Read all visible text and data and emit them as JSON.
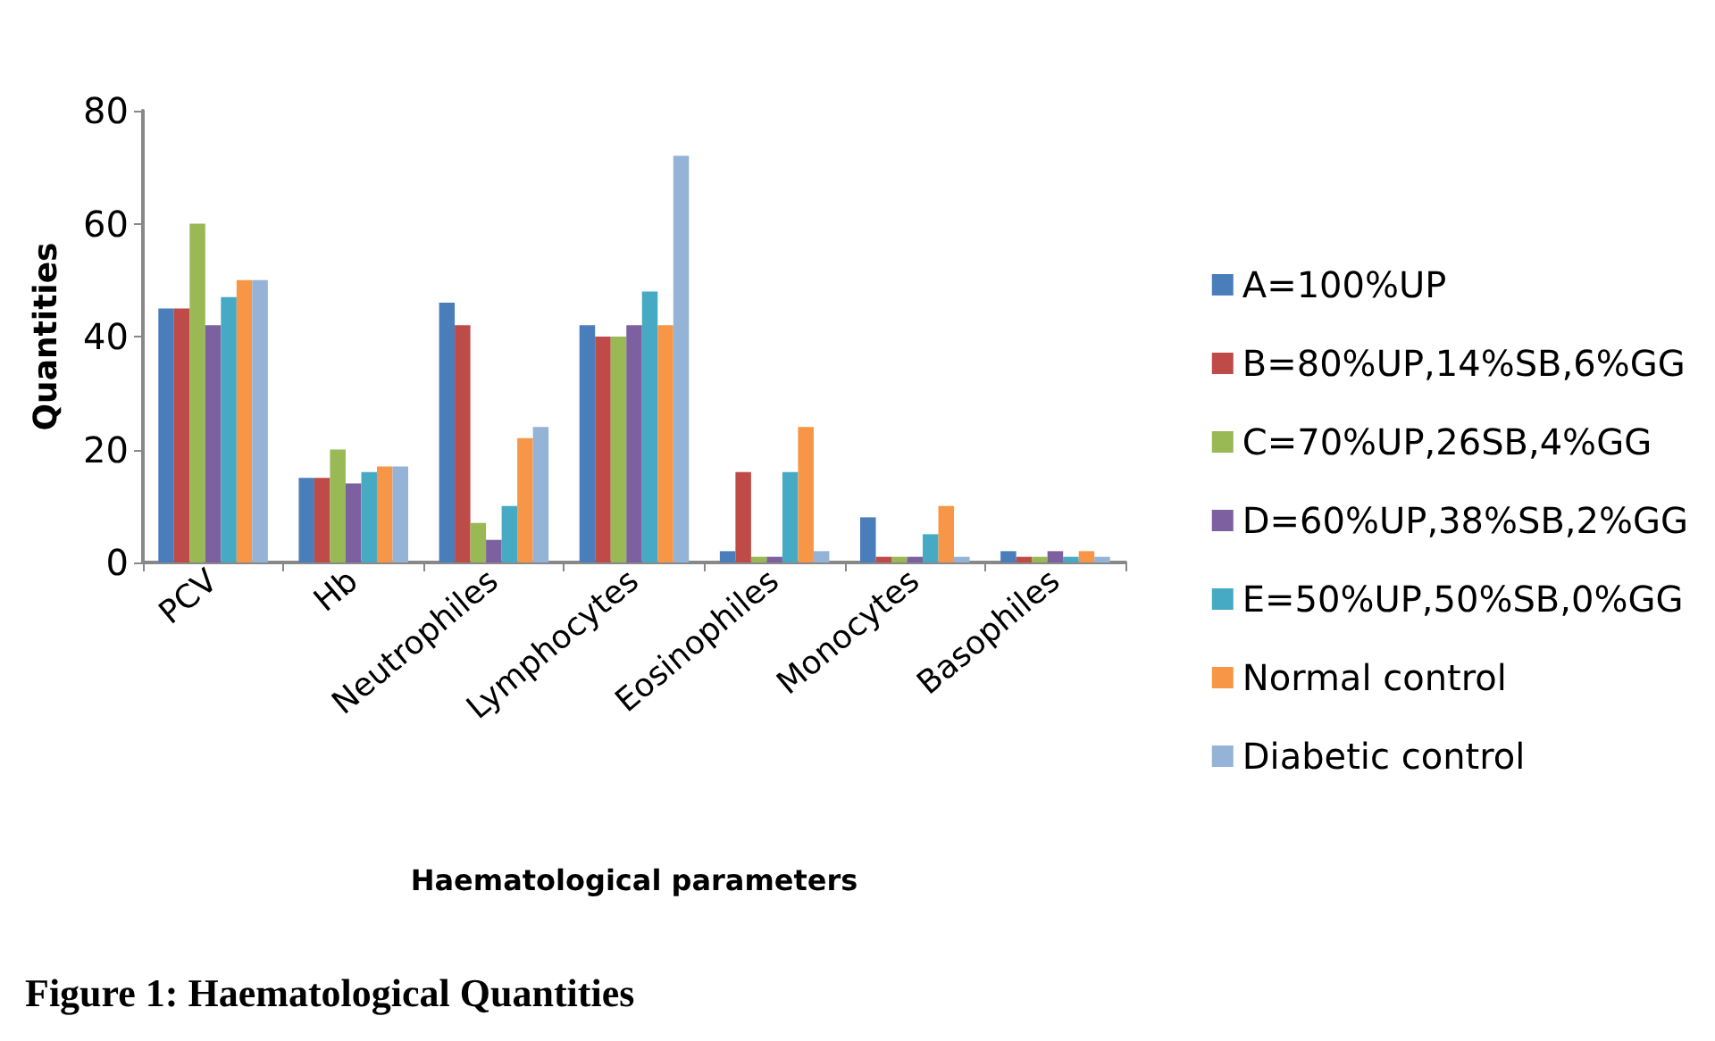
{
  "chart_data": {
    "type": "bar",
    "xlabel": "Haematological parameters",
    "ylabel": "Quantities",
    "annotations": [
      "Figure 1: Haematological Quantities"
    ],
    "categories": [
      "PCV",
      "Hb",
      "Neutrophiles",
      "Lymphocytes",
      "Eosinophiles",
      "Monocytes",
      "Basophiles"
    ],
    "ylim": [
      0,
      80
    ],
    "yticks": [
      0,
      20,
      40,
      60,
      80
    ],
    "grid": false,
    "legend": "right",
    "series": [
      {
        "name": "A=100%UP",
        "color": "#4a7ebb",
        "values": [
          45,
          15,
          46,
          42,
          2,
          8,
          2
        ]
      },
      {
        "name": "B=80%UP,14%SB,6%GG",
        "color": "#be4b48",
        "values": [
          45,
          15,
          42,
          40,
          16,
          1,
          1
        ]
      },
      {
        "name": "C=70%UP,26SB,4%GG",
        "color": "#98b954",
        "values": [
          60,
          20,
          7,
          40,
          1,
          1,
          1
        ]
      },
      {
        "name": "D=60%UP,38%SB,2%GG",
        "color": "#7d60a0",
        "values": [
          42,
          14,
          4,
          42,
          1,
          1,
          2
        ]
      },
      {
        "name": "E=50%UP,50%SB,0%GG",
        "color": "#46aac5",
        "values": [
          47,
          16,
          10,
          48,
          16,
          5,
          1
        ]
      },
      {
        "name": "Normal control",
        "color": "#f79646",
        "values": [
          50,
          17,
          22,
          42,
          24,
          10,
          2
        ]
      },
      {
        "name": "Diabetic control",
        "color": "#95b3d7",
        "values": [
          50,
          17,
          24,
          72,
          2,
          1,
          1
        ]
      }
    ]
  }
}
